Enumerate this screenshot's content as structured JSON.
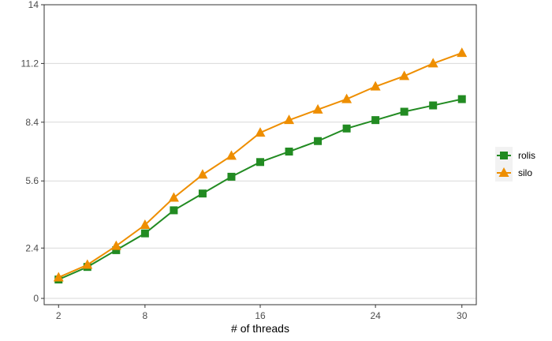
{
  "chart_data": {
    "type": "line",
    "title": "",
    "xlabel": "# of threads",
    "ylabel": "",
    "x": [
      2,
      4,
      6,
      8,
      10,
      12,
      14,
      16,
      18,
      20,
      22,
      24,
      26,
      28,
      30
    ],
    "xlim": [
      1,
      31
    ],
    "ylim": [
      -0.3,
      14
    ],
    "xticks": [
      2,
      8,
      16,
      24,
      30
    ],
    "xtick_labels": [
      "2",
      "8",
      "16",
      "24",
      "30"
    ],
    "yticks": [
      0,
      2.4,
      5.6,
      8.4,
      11.2,
      14
    ],
    "ytick_labels": [
      "0",
      "2.4",
      "5.6",
      "8.4",
      "11.2",
      "14"
    ],
    "grid": true,
    "legend_position": "right",
    "series": [
      {
        "name": "rolis",
        "color": "#228B22",
        "marker": "square",
        "values": [
          0.9,
          1.5,
          2.3,
          3.1,
          4.2,
          5.0,
          5.8,
          6.5,
          7.0,
          7.5,
          8.1,
          8.5,
          8.9,
          9.2,
          9.5
        ]
      },
      {
        "name": "silo",
        "color": "#EE8E00",
        "marker": "triangle",
        "values": [
          1.0,
          1.6,
          2.5,
          3.5,
          4.8,
          5.9,
          6.8,
          7.9,
          8.5,
          9.0,
          9.5,
          10.1,
          10.6,
          11.2,
          11.7
        ]
      }
    ]
  }
}
